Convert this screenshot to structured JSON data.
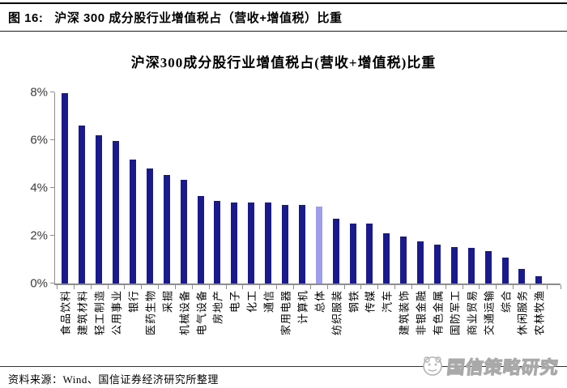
{
  "figure_header": {
    "label": "图  16:",
    "title": "沪深 300 成分股行业增值税占（营收+增值税）比重"
  },
  "chart_data": {
    "type": "bar",
    "title": "沪深300成分股行业增值税占(营收+增值税)比重",
    "categories": [
      "食品饮料",
      "建筑材料",
      "轻工制造",
      "公用事业",
      "银行",
      "医药生物",
      "采掘",
      "机械设备",
      "电气设备",
      "房地产",
      "电子",
      "化工",
      "通信",
      "家用电器",
      "计算机",
      "总体",
      "纺织服装",
      "钢铁",
      "传媒",
      "汽车",
      "建筑装饰",
      "非银金融",
      "有色金属",
      "国防军工",
      "商业贸易",
      "交通运输",
      "综合",
      "休闲服务",
      "农林牧渔"
    ],
    "values": [
      7.95,
      6.6,
      6.2,
      5.95,
      5.2,
      4.8,
      4.55,
      4.35,
      3.65,
      3.45,
      3.4,
      3.38,
      3.38,
      3.3,
      3.28,
      3.22,
      2.72,
      2.5,
      2.5,
      2.1,
      1.95,
      1.76,
      1.62,
      1.53,
      1.5,
      1.35,
      1.08,
      0.6,
      0.32
    ],
    "unit": "%",
    "highlight_index": 15,
    "highlight_category": "总体",
    "ylim": [
      0,
      8
    ],
    "ytick_labels": [
      "0%",
      "2%",
      "4%",
      "6%",
      "8%"
    ],
    "grid": false,
    "legend": false,
    "colors": {
      "bar": "#1A1A8C",
      "highlight": "#9E9EEA",
      "axis": "#8C8C8C",
      "tick_label": "#3A3A3A"
    }
  },
  "footer": {
    "source": "资料来源：Wind、国信证券经济研究所整理"
  },
  "watermark": {
    "text": "国信策略研究",
    "logo": "guosen-panda-logo"
  }
}
